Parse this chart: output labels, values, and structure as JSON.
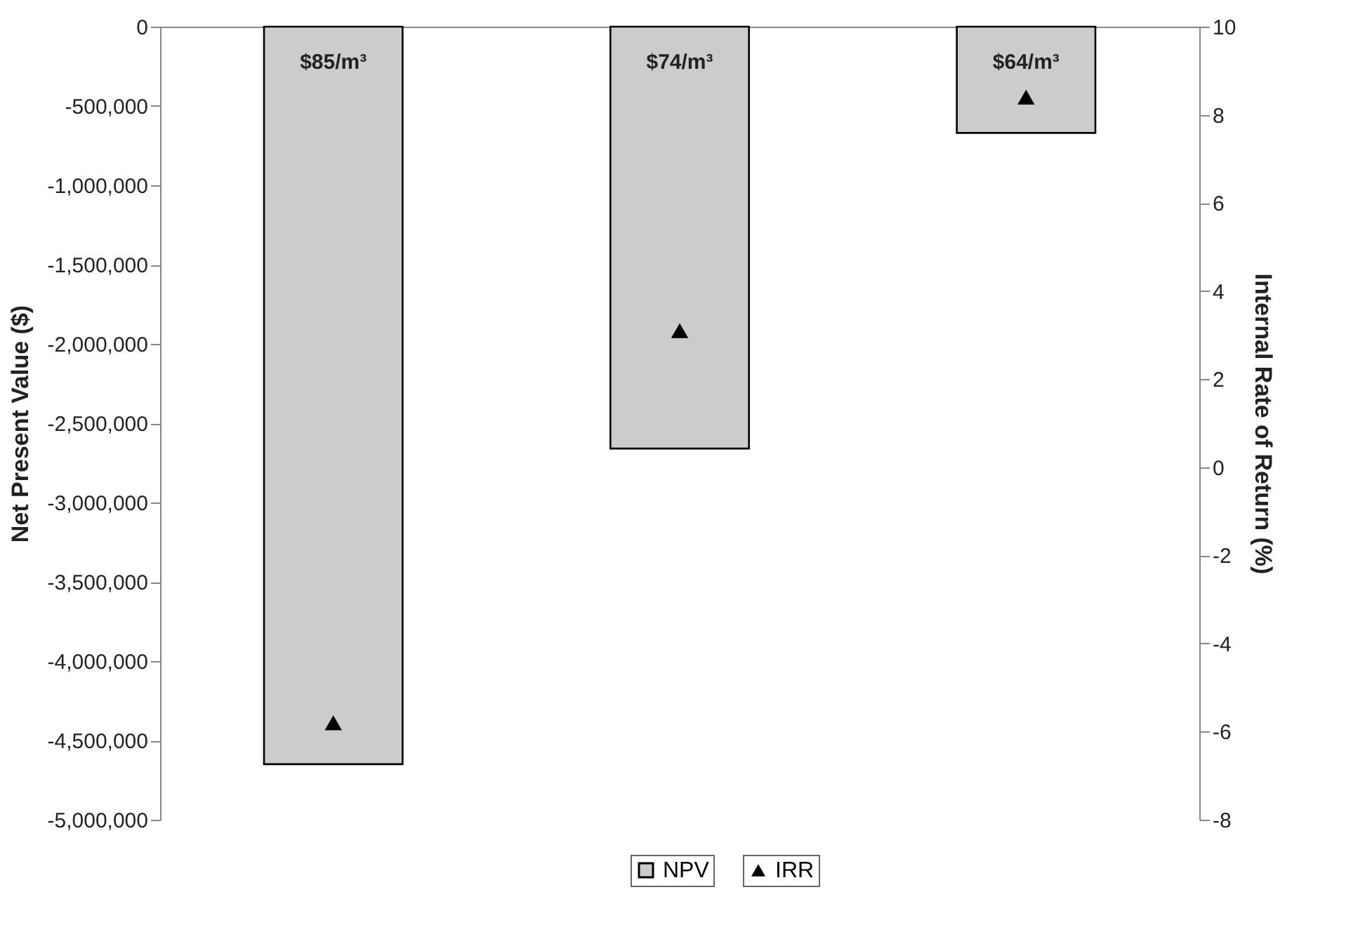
{
  "chart_data": {
    "type": "bar",
    "categories": [
      "$85/m³",
      "$74/m³",
      "$64/m³"
    ],
    "ylabel": "Net Present Value ($)",
    "y2label": "Internal Rate of Return (%)",
    "ylim": [
      -5000000,
      0
    ],
    "yticks": [
      {
        "value": -5000000,
        "label": "-5,000,000"
      },
      {
        "value": -4500000,
        "label": "-4,500,000"
      },
      {
        "value": -4000000,
        "label": "-4,000,000"
      },
      {
        "value": -3500000,
        "label": "-3,500,000"
      },
      {
        "value": -3000000,
        "label": "-3,000,000"
      },
      {
        "value": -2500000,
        "label": "-2,500,000"
      },
      {
        "value": -2000000,
        "label": "-2,000,000"
      },
      {
        "value": -1500000,
        "label": "-1,500,000"
      },
      {
        "value": -1000000,
        "label": "-1,000,000"
      },
      {
        "value": -500000,
        "label": "-500,000"
      },
      0
    ],
    "y2lim": [
      -8,
      10
    ],
    "y2ticks": [
      -8,
      -6,
      -4,
      -2,
      0,
      2,
      4,
      6,
      8,
      10
    ],
    "legend": "bottom",
    "grid": false,
    "marker": "triangle",
    "series": [
      {
        "name": "NPV",
        "type": "bar",
        "color": "#cccccc",
        "values": [
          -4650000,
          -2660000,
          -670000
        ]
      },
      {
        "name": "IRR",
        "type": "scatter",
        "axis": "y2",
        "color": "#000000",
        "values": [
          -5.8,
          3.1,
          8.4
        ]
      }
    ]
  }
}
